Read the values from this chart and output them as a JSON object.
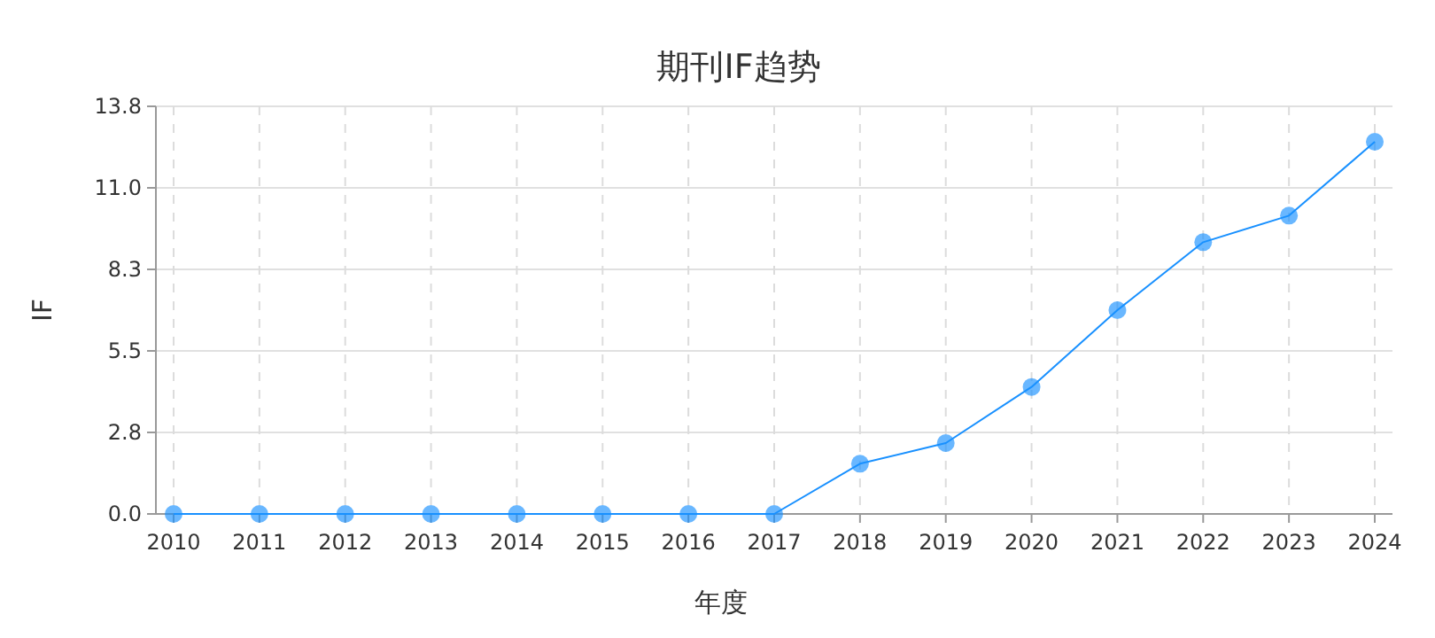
{
  "chart_data": {
    "type": "line",
    "title": "期刊IF趋势",
    "xlabel": "年度",
    "ylabel": "IF",
    "categories": [
      "2010",
      "2011",
      "2012",
      "2013",
      "2014",
      "2015",
      "2016",
      "2017",
      "2018",
      "2019",
      "2020",
      "2021",
      "2022",
      "2023",
      "2024"
    ],
    "series": [
      {
        "color": "#1890ff",
        "values": [
          0,
          0,
          0,
          0,
          0,
          0,
          0,
          0,
          1.7,
          2.4,
          4.3,
          6.9,
          9.2,
          10.1,
          12.6
        ]
      }
    ],
    "ylim": [
      0,
      13.8
    ],
    "yticks": [
      {
        "value": 0,
        "label": "0.0"
      },
      {
        "value": 2.76,
        "label": "2.8"
      },
      {
        "value": 5.52,
        "label": "5.5"
      },
      {
        "value": 8.28,
        "label": "8.3"
      },
      {
        "value": 11.04,
        "label": "11.0"
      },
      {
        "value": 13.8,
        "label": "13.8"
      }
    ],
    "grid": true,
    "marker": "circle",
    "line_style": "solid"
  }
}
